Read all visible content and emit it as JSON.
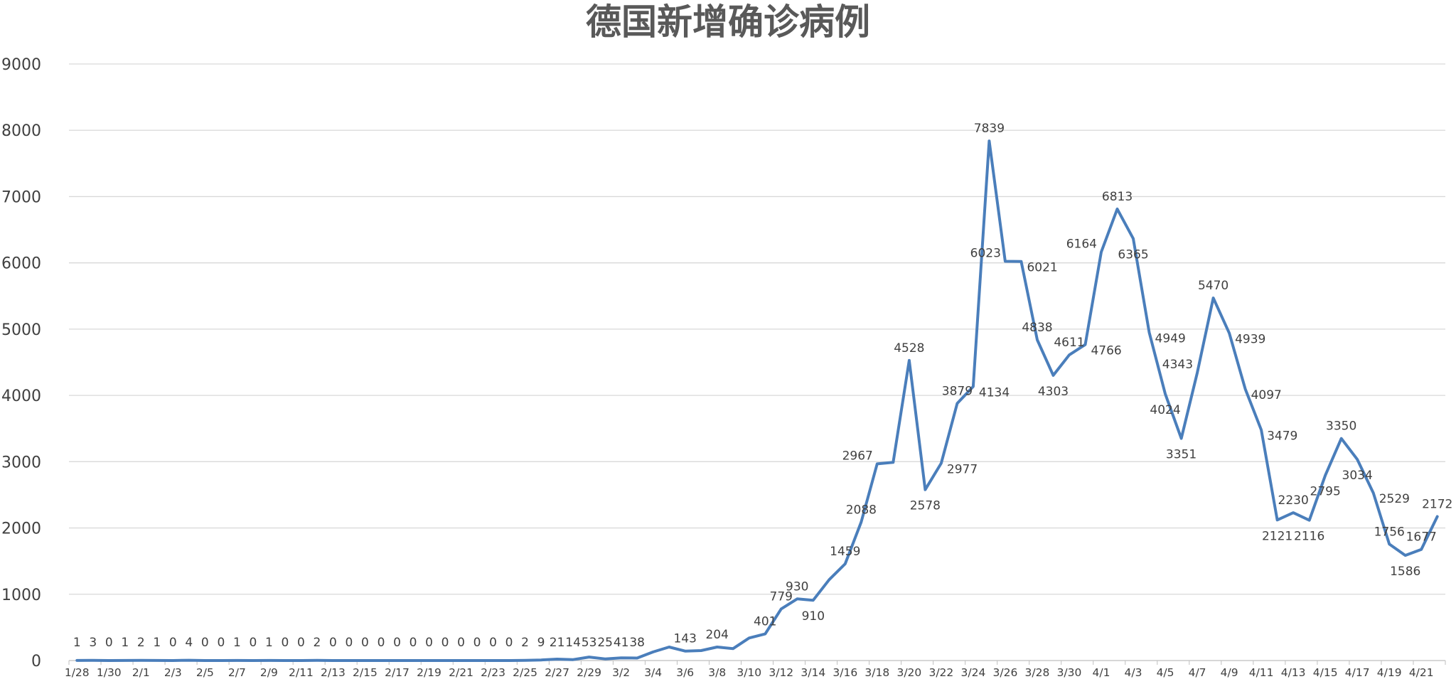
{
  "chart_data": {
    "type": "line",
    "title": "德国新增确诊病例",
    "xlabel": "",
    "ylabel": "",
    "ylim": [
      0,
      9000
    ],
    "yticks": [
      0,
      1000,
      2000,
      3000,
      4000,
      5000,
      6000,
      7000,
      8000,
      9000
    ],
    "grid": true,
    "legend": "none",
    "color": "#4a7ebb",
    "tick_labels": [
      "1/28",
      "1/30",
      "2/1",
      "2/3",
      "2/5",
      "2/7",
      "2/9",
      "2/11",
      "2/13",
      "2/15",
      "2/17",
      "2/19",
      "2/21",
      "2/23",
      "2/25",
      "2/27",
      "2/29",
      "3/2",
      "3/4",
      "3/6",
      "3/8",
      "3/10",
      "3/12",
      "3/14",
      "3/16",
      "3/18",
      "3/20",
      "3/22",
      "3/24",
      "3/26",
      "3/28",
      "3/30",
      "4/1",
      "4/3",
      "4/5",
      "4/7",
      "4/9",
      "4/11",
      "4/13",
      "4/15",
      "4/17",
      "4/19",
      "4/21"
    ],
    "x": [
      "1/28",
      "1/29",
      "1/30",
      "1/31",
      "2/1",
      "2/2",
      "2/3",
      "2/4",
      "2/5",
      "2/6",
      "2/7",
      "2/8",
      "2/9",
      "2/10",
      "2/11",
      "2/12",
      "2/13",
      "2/14",
      "2/15",
      "2/16",
      "2/17",
      "2/18",
      "2/19",
      "2/20",
      "2/21",
      "2/22",
      "2/23",
      "2/24",
      "2/25",
      "2/26",
      "2/27",
      "2/28",
      "2/29",
      "3/1",
      "3/2",
      "3/3",
      "3/4",
      "3/5",
      "3/6",
      "3/7",
      "3/8",
      "3/9",
      "3/10",
      "3/11",
      "3/12",
      "3/13",
      "3/14",
      "3/15",
      "3/16",
      "3/17",
      "3/18",
      "3/19",
      "3/20",
      "3/21",
      "3/22",
      "3/23",
      "3/24",
      "3/25",
      "3/26",
      "3/27",
      "3/28",
      "3/29",
      "3/30",
      "3/31",
      "4/1",
      "4/2",
      "4/3",
      "4/4",
      "4/5",
      "4/6",
      "4/7",
      "4/8",
      "4/9",
      "4/10",
      "4/11",
      "4/12",
      "4/13",
      "4/14",
      "4/15",
      "4/16",
      "4/17",
      "4/18",
      "4/19",
      "4/20",
      "4/21",
      "4/22"
    ],
    "values": [
      1,
      3,
      0,
      1,
      2,
      1,
      0,
      4,
      0,
      0,
      1,
      0,
      1,
      0,
      0,
      2,
      0,
      0,
      0,
      0,
      0,
      0,
      0,
      0,
      0,
      0,
      0,
      0,
      2,
      9,
      21,
      14,
      53,
      25,
      41,
      38,
      130,
      204,
      143,
      150,
      204,
      180,
      340,
      401,
      779,
      930,
      910,
      1220,
      1459,
      2088,
      2967,
      2990,
      4528,
      2578,
      2977,
      3879,
      4134,
      7839,
      6023,
      6021,
      4838,
      4303,
      4611,
      4766,
      6164,
      6813,
      6365,
      4949,
      4024,
      3351,
      4343,
      5470,
      4939,
      4097,
      3479,
      2121,
      2230,
      2116,
      2795,
      3350,
      3034,
      2529,
      1756,
      1586,
      1677,
      2172
    ],
    "data_labels": [
      {
        "i": 0,
        "text": "1"
      },
      {
        "i": 1,
        "text": "3"
      },
      {
        "i": 2,
        "text": "0"
      },
      {
        "i": 3,
        "text": "1"
      },
      {
        "i": 4,
        "text": "2"
      },
      {
        "i": 5,
        "text": "1"
      },
      {
        "i": 6,
        "text": "0"
      },
      {
        "i": 7,
        "text": "4"
      },
      {
        "i": 8,
        "text": "0"
      },
      {
        "i": 9,
        "text": "0"
      },
      {
        "i": 10,
        "text": "1"
      },
      {
        "i": 11,
        "text": "0"
      },
      {
        "i": 12,
        "text": "1"
      },
      {
        "i": 13,
        "text": "0"
      },
      {
        "i": 14,
        "text": "0"
      },
      {
        "i": 15,
        "text": "2"
      },
      {
        "i": 16,
        "text": "0"
      },
      {
        "i": 17,
        "text": "0"
      },
      {
        "i": 18,
        "text": "0"
      },
      {
        "i": 19,
        "text": "0"
      },
      {
        "i": 20,
        "text": "0"
      },
      {
        "i": 21,
        "text": "0"
      },
      {
        "i": 22,
        "text": "0"
      },
      {
        "i": 23,
        "text": "0"
      },
      {
        "i": 24,
        "text": "0"
      },
      {
        "i": 25,
        "text": "0"
      },
      {
        "i": 26,
        "text": "0"
      },
      {
        "i": 27,
        "text": "0"
      },
      {
        "i": 28,
        "text": "2"
      },
      {
        "i": 29,
        "text": "9"
      },
      {
        "i": 30,
        "text": "21"
      },
      {
        "i": 31,
        "text": "14"
      },
      {
        "i": 32,
        "text": "53"
      },
      {
        "i": 33,
        "text": "25"
      },
      {
        "i": 34,
        "text": "41"
      },
      {
        "i": 35,
        "text": "38"
      },
      {
        "i": 38,
        "text": "143"
      },
      {
        "i": 40,
        "text": "204"
      },
      {
        "i": 43,
        "text": "401"
      },
      {
        "i": 44,
        "text": "779"
      },
      {
        "i": 45,
        "text": "930"
      },
      {
        "i": 46,
        "text": "910"
      },
      {
        "i": 48,
        "text": "1459"
      },
      {
        "i": 49,
        "text": "2088"
      },
      {
        "i": 50,
        "text": "2967"
      },
      {
        "i": 52,
        "text": "4528"
      },
      {
        "i": 53,
        "text": "2578"
      },
      {
        "i": 54,
        "text": "2977"
      },
      {
        "i": 55,
        "text": "3879"
      },
      {
        "i": 56,
        "text": "4134"
      },
      {
        "i": 57,
        "text": "7839"
      },
      {
        "i": 58,
        "text": "6023"
      },
      {
        "i": 59,
        "text": "6021"
      },
      {
        "i": 60,
        "text": "4838"
      },
      {
        "i": 61,
        "text": "4303"
      },
      {
        "i": 62,
        "text": "4611"
      },
      {
        "i": 63,
        "text": "4766"
      },
      {
        "i": 64,
        "text": "6164"
      },
      {
        "i": 65,
        "text": "6813"
      },
      {
        "i": 66,
        "text": "6365"
      },
      {
        "i": 67,
        "text": "4949"
      },
      {
        "i": 68,
        "text": "4024"
      },
      {
        "i": 69,
        "text": "3351"
      },
      {
        "i": 70,
        "text": "4343"
      },
      {
        "i": 71,
        "text": "5470"
      },
      {
        "i": 72,
        "text": "4939"
      },
      {
        "i": 73,
        "text": "4097"
      },
      {
        "i": 74,
        "text": "3479"
      },
      {
        "i": 75,
        "text": "2121"
      },
      {
        "i": 76,
        "text": "2230"
      },
      {
        "i": 77,
        "text": "2116"
      },
      {
        "i": 78,
        "text": "2795"
      },
      {
        "i": 79,
        "text": "3350"
      },
      {
        "i": 80,
        "text": "3034"
      },
      {
        "i": 81,
        "text": "2529"
      },
      {
        "i": 82,
        "text": "1756"
      },
      {
        "i": 83,
        "text": "1586"
      },
      {
        "i": 84,
        "text": "1677"
      },
      {
        "i": 85,
        "text": "2172"
      }
    ]
  }
}
